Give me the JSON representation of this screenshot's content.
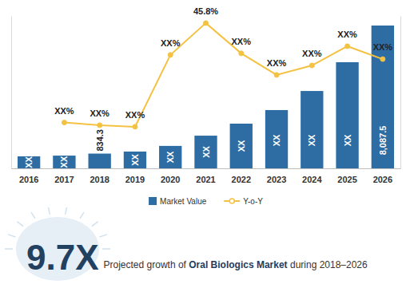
{
  "chart_data": {
    "type": "bar",
    "categories": [
      "2016",
      "2017",
      "2018",
      "2019",
      "2020",
      "2021",
      "2022",
      "2023",
      "2024",
      "2025",
      "2026"
    ],
    "series": [
      {
        "name": "Market Value",
        "type": "bar",
        "color": "#2e6da4",
        "values": [
          680,
          720,
          834.3,
          950,
          1270,
          1850,
          2530,
          3300,
          4380,
          6010,
          8087.5
        ],
        "value_labels": [
          "XX",
          "XX",
          "834.3",
          "XX",
          "XX",
          "XX",
          "XX",
          "XX",
          "XX",
          "XX",
          "8,087.5"
        ]
      },
      {
        "name": "Y-o-Y",
        "type": "line",
        "axis": "y2",
        "color": "#f4c242",
        "marker": "circle",
        "values": [
          null,
          8.0,
          7.0,
          6.4,
          33.7,
          45.8,
          34.3,
          26.1,
          29.7,
          37.0,
          32.1
        ],
        "value_labels": [
          null,
          "XX%",
          "XX%",
          "XX%",
          "XX%",
          "45.8%",
          "XX%",
          "XX%",
          "XX%",
          "XX%",
          "XX%"
        ]
      }
    ],
    "ylim": [
      0,
      8630
    ],
    "yticks": [],
    "y2lim": [
      -9.4,
      48.5
    ],
    "y2ticks": [],
    "grid": false,
    "legend": "bottom",
    "data_labels": true,
    "tick_labels": "x",
    "annotations": [
      "9.7X",
      "Projected growth of ",
      "Oral Biologics Market",
      " during 2018–2026"
    ]
  }
}
